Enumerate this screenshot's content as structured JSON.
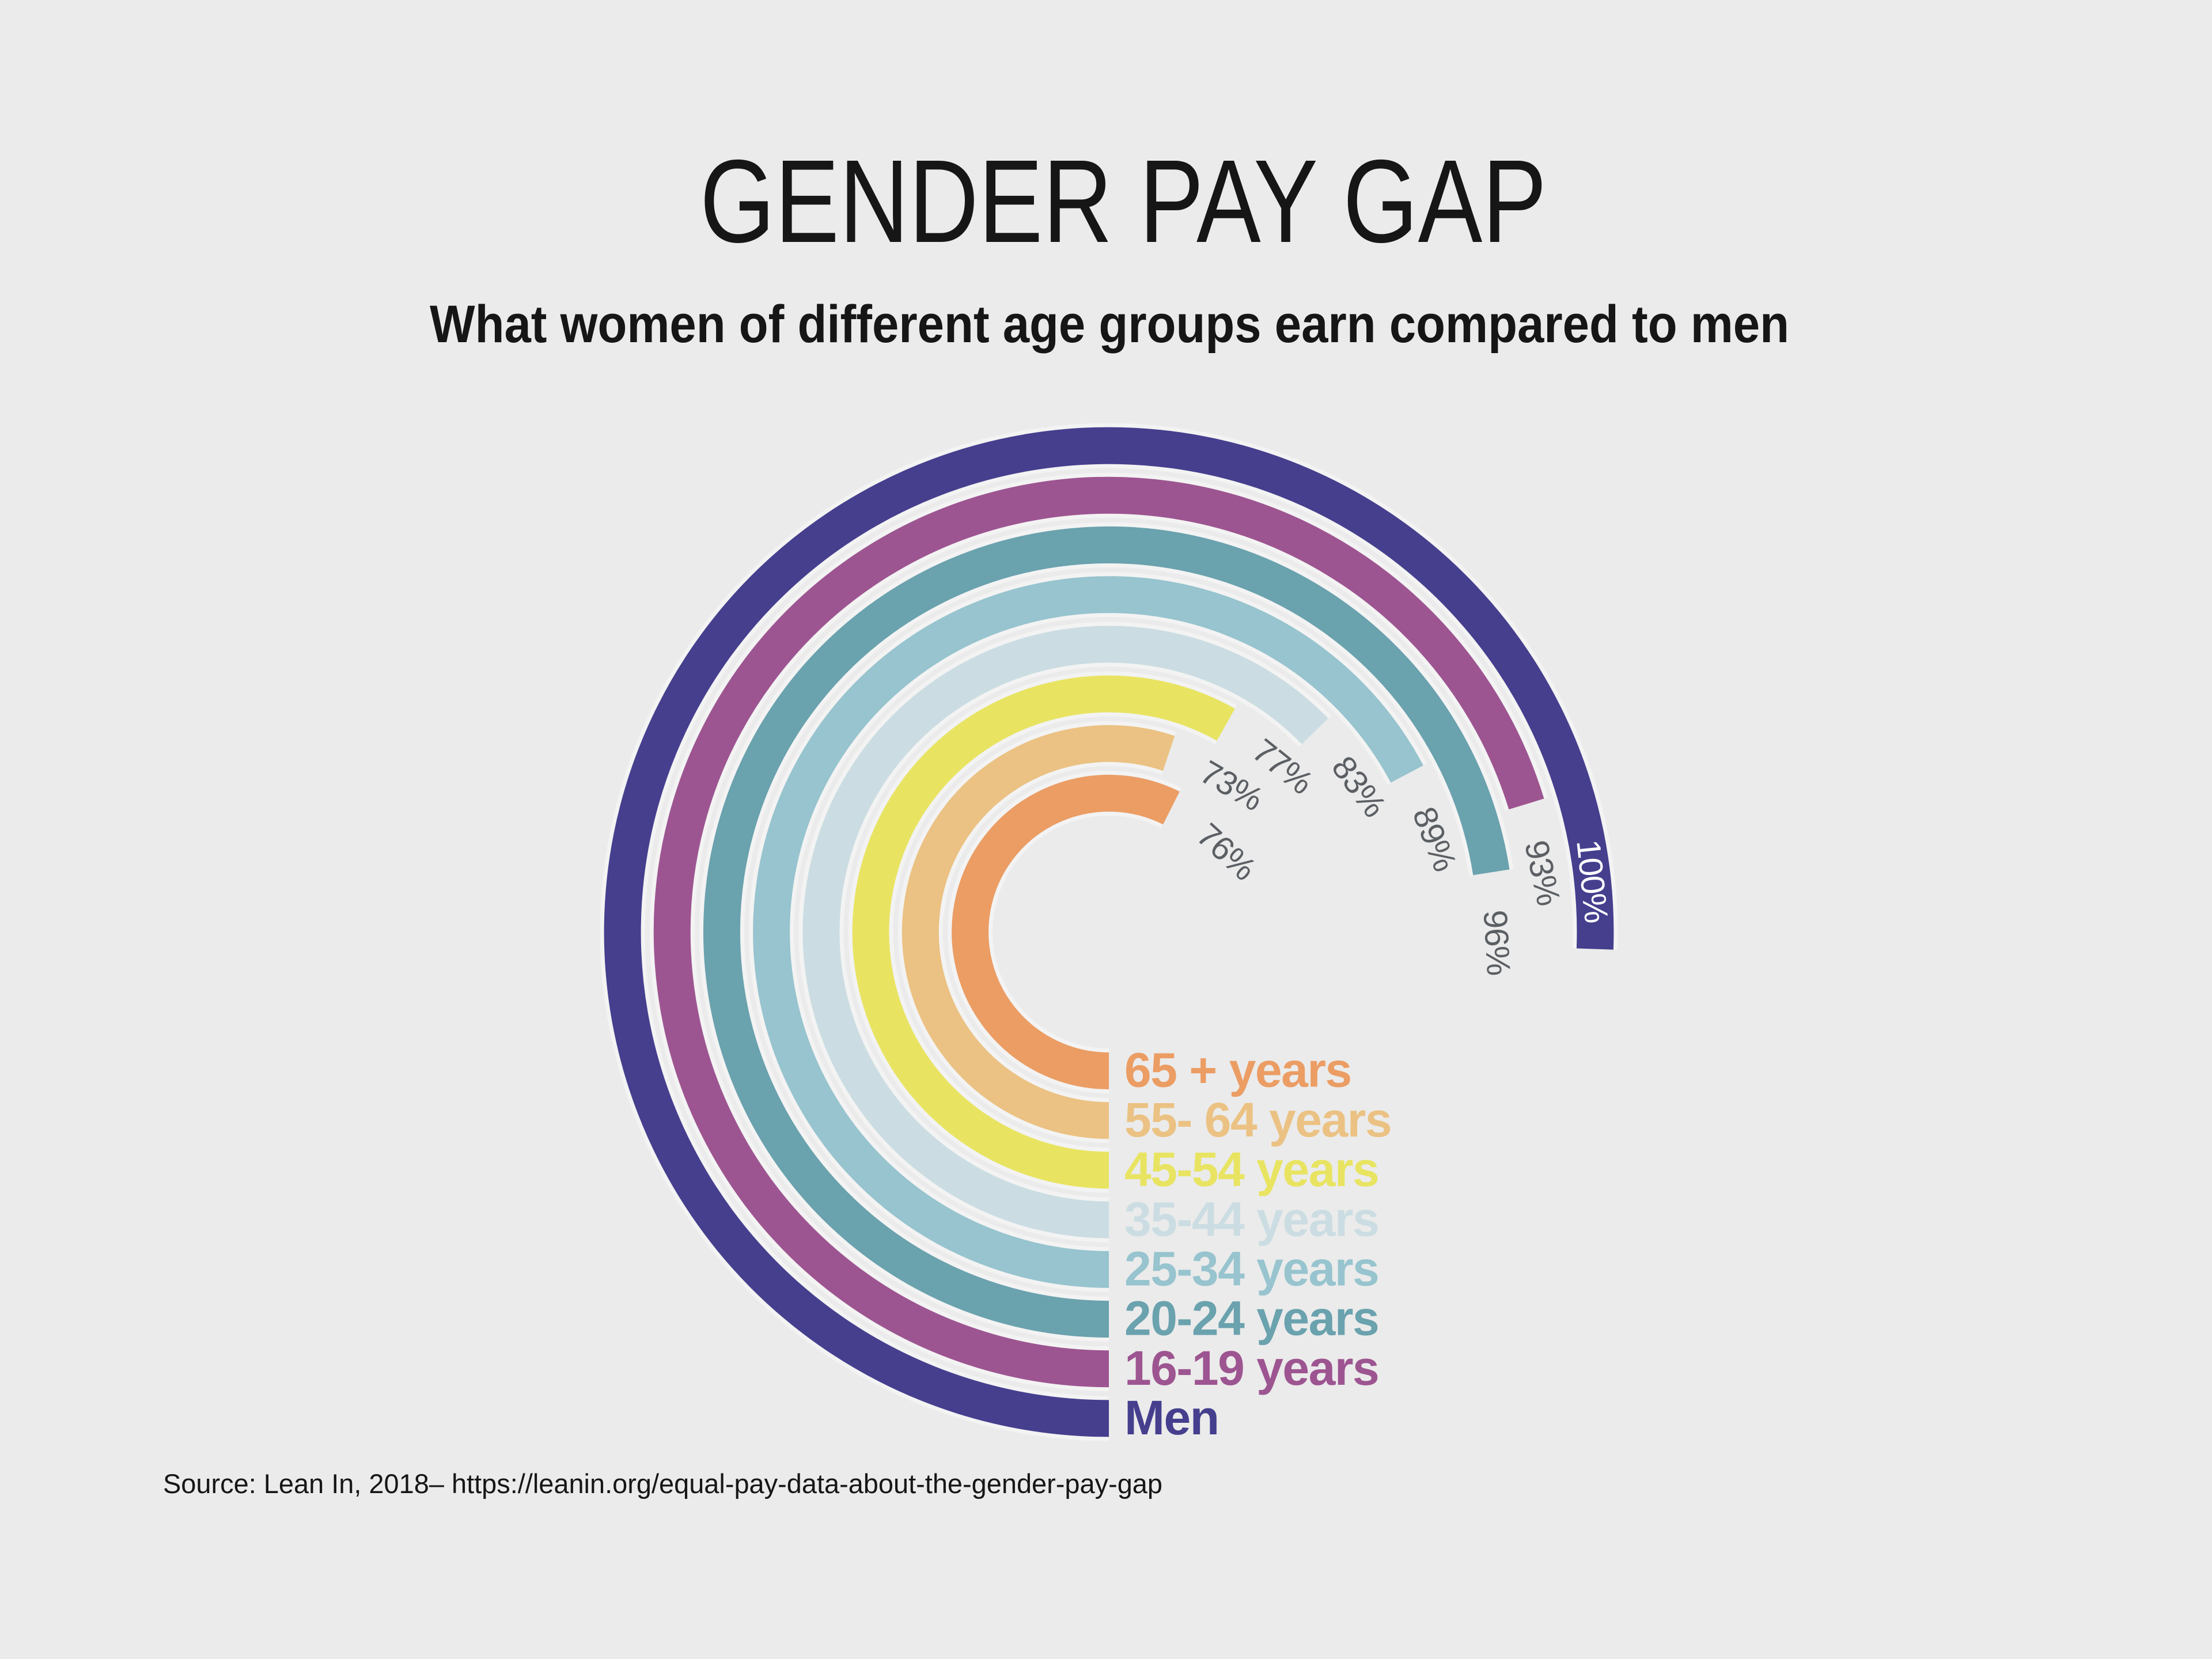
{
  "header": {
    "title": "GENDER PAY GAP",
    "subtitle": "What women of different age groups earn compared to men"
  },
  "footer": {
    "source": "Source: Lean In, 2018–  https://leanin.org/equal-pay-data-about-the-gender-pay-gap"
  },
  "theme": {
    "background": "#ebebeb",
    "title_color": "#161616",
    "value_label_color": "#5b5f64",
    "value_label_inside_color": "#ffffff",
    "halo_color": "#f3f3f3"
  },
  "chart_data": {
    "type": "radial-bar",
    "title": "GENDER PAY GAP",
    "subtitle": "What women of different age groups earn compared to men",
    "unit": "%",
    "scale": {
      "start_angle_deg": 180,
      "full_sweep_deg": 272,
      "direction": "clockwise",
      "note": "each ring starts at 6 o'clock and sweeps clockwise; 100% spans about 272 degrees ending just past 3 o'clock; rings ordered innermost to outermost"
    },
    "series": [
      {
        "label": "65 + years",
        "value": 76,
        "display_value": "76%",
        "color": "#eb9d64"
      },
      {
        "label": "55- 64 years",
        "value": 73,
        "display_value": "73%",
        "color": "#ebc283"
      },
      {
        "label": "45-54 years",
        "value": 77,
        "display_value": "77%",
        "color": "#e8e462"
      },
      {
        "label": "35-44 years",
        "value": 83,
        "display_value": "83%",
        "color": "#cbdde2"
      },
      {
        "label": "25-34 years",
        "value": 89,
        "display_value": "89%",
        "color": "#97c4ce"
      },
      {
        "label": "20-24 years",
        "value": 96,
        "display_value": "96%",
        "color": "#6aa2ae"
      },
      {
        "label": "16-19 years",
        "value": 93,
        "display_value": "93%",
        "color": "#9d5591"
      },
      {
        "label": "Men",
        "value": 100,
        "display_value": "100%",
        "color": "#453f8e",
        "value_label_inside": true
      }
    ],
    "legend_position": "bottom, one label per ring aligned with the ring's end at 6 o'clock",
    "source": "Source: Lean In, 2018–  https://leanin.org/equal-pay-data-about-the-gender-pay-gap"
  }
}
